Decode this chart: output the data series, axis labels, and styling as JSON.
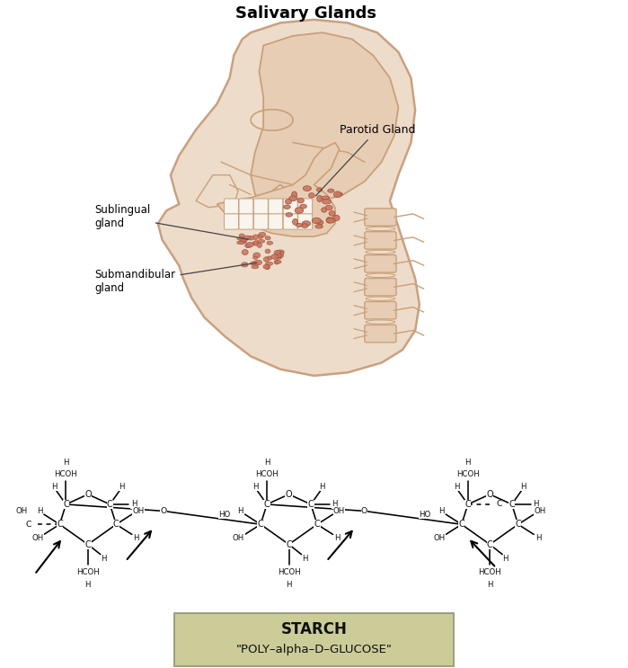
{
  "title": "Salivary Glands",
  "title_fontsize": 13,
  "title_fontweight": "bold",
  "bg": "#ffffff",
  "skin_outline": "#c9a080",
  "skin_fill": "#eedcca",
  "skin_fill2": "#e8cdb5",
  "gland_fill": "#c87860",
  "gland_edge": "#a05040",
  "bone_color": "#c8a078",
  "label_parotid": "Parotid Gland",
  "label_sublingual": "Sublingual\ngland",
  "label_submandibular": "Submandibular\ngland",
  "starch_label1": "STARCH",
  "starch_label2": "\"POLY–alpha–D–GLUCOSE\"",
  "starch_box_fill": "#cccc99",
  "starch_box_edge": "#999977"
}
